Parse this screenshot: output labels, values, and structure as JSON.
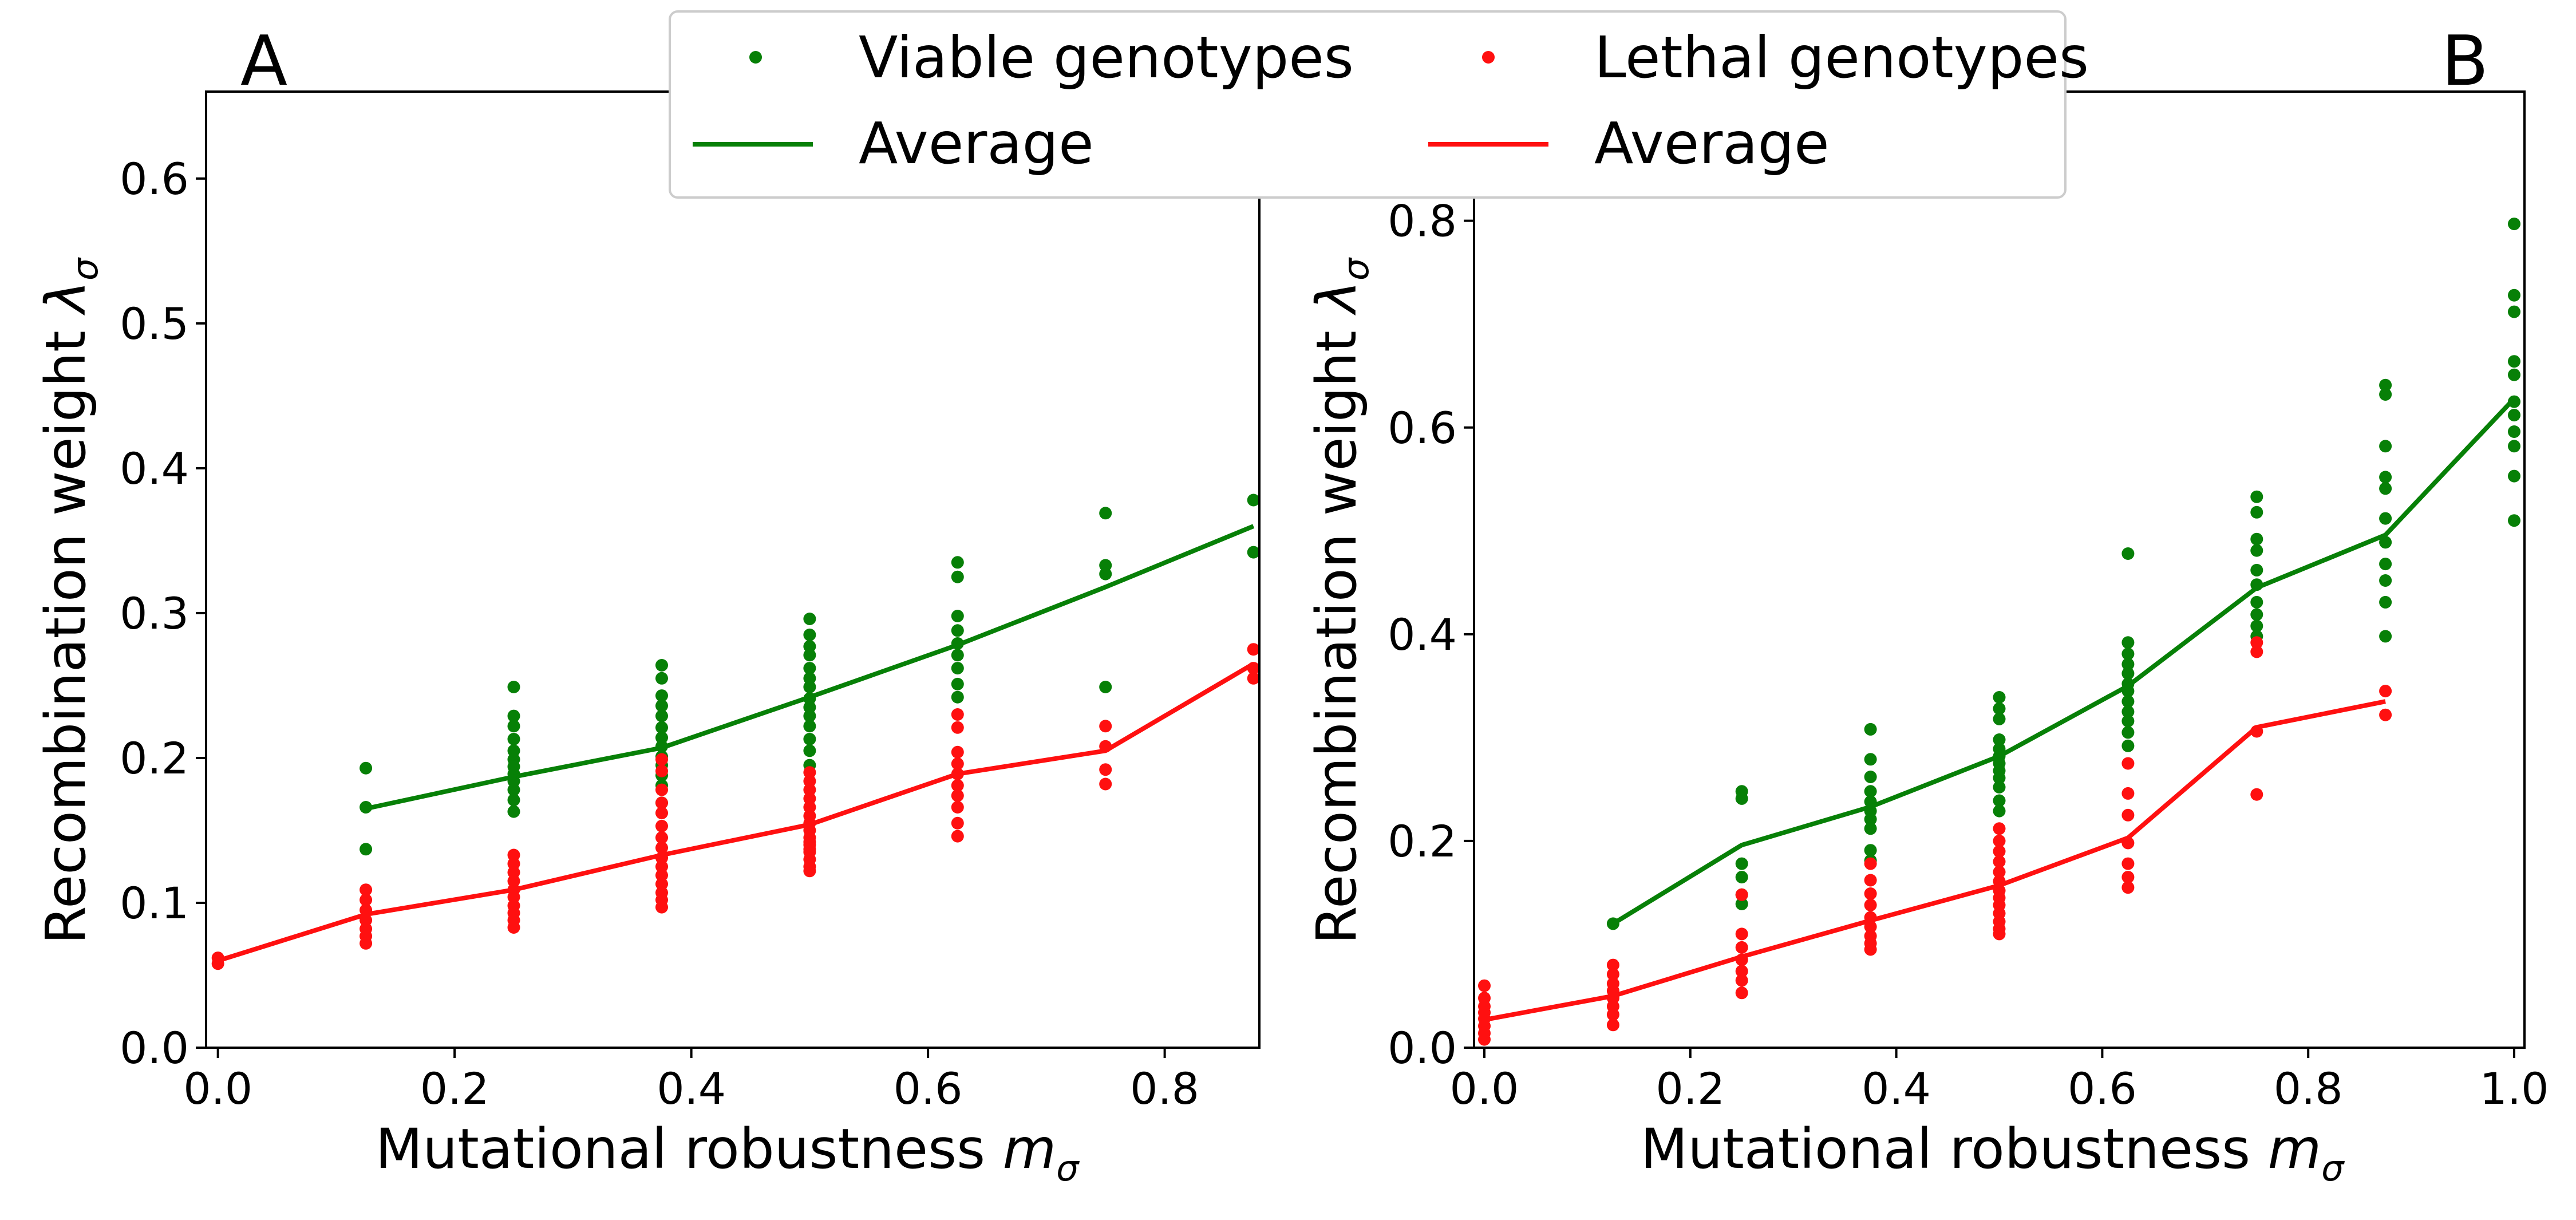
{
  "colors": {
    "viable": "#078007",
    "lethal": "#ff1010"
  },
  "legend": {
    "viable_label": "Viable genotypes",
    "viable_avg_label": "Average",
    "lethal_label": "Lethal genotypes",
    "lethal_avg_label": "Average"
  },
  "chart_data": [
    {
      "panel": "A",
      "type": "scatter",
      "xlabel": "Mutational robustness",
      "xlabel_symbol": "m",
      "xlabel_sub": "σ",
      "ylabel": "Recombination weight",
      "ylabel_symbol": "λ",
      "ylabel_sub": "σ",
      "xlim": [
        -0.01,
        0.88
      ],
      "ylim": [
        0.0,
        0.66
      ],
      "xticks": [
        0.0,
        0.2,
        0.4,
        0.6,
        0.8
      ],
      "xtick_labels": [
        "0.0",
        "0.2",
        "0.4",
        "0.6",
        "0.8"
      ],
      "yticks": [
        0.0,
        0.1,
        0.2,
        0.3,
        0.4,
        0.5,
        0.6
      ],
      "ytick_labels": [
        "0.0",
        "0.1",
        "0.2",
        "0.3",
        "0.4",
        "0.5",
        "0.6"
      ],
      "series": [
        {
          "name": "Viable genotypes",
          "kind": "points",
          "color_key": "viable",
          "x": [
            0.125,
            0.125,
            0.125,
            0.25,
            0.25,
            0.25,
            0.25,
            0.25,
            0.25,
            0.25,
            0.25,
            0.25,
            0.25,
            0.25,
            0.25,
            0.375,
            0.375,
            0.375,
            0.375,
            0.375,
            0.375,
            0.375,
            0.375,
            0.375,
            0.375,
            0.375,
            0.375,
            0.375,
            0.5,
            0.5,
            0.5,
            0.5,
            0.5,
            0.5,
            0.5,
            0.5,
            0.5,
            0.5,
            0.5,
            0.5,
            0.5,
            0.5,
            0.625,
            0.625,
            0.625,
            0.625,
            0.625,
            0.625,
            0.625,
            0.625,
            0.625,
            0.75,
            0.75,
            0.75,
            0.75,
            0.875,
            0.875
          ],
          "y": [
            0.193,
            0.166,
            0.137,
            0.249,
            0.229,
            0.222,
            0.213,
            0.205,
            0.199,
            0.194,
            0.189,
            0.184,
            0.178,
            0.171,
            0.163,
            0.264,
            0.255,
            0.243,
            0.236,
            0.229,
            0.221,
            0.214,
            0.208,
            0.201,
            0.195,
            0.188,
            0.181,
            0.169,
            0.296,
            0.285,
            0.277,
            0.271,
            0.262,
            0.255,
            0.249,
            0.241,
            0.235,
            0.229,
            0.222,
            0.213,
            0.205,
            0.195,
            0.335,
            0.325,
            0.298,
            0.288,
            0.279,
            0.271,
            0.262,
            0.251,
            0.242,
            0.369,
            0.333,
            0.327,
            0.249,
            0.378,
            0.342
          ]
        },
        {
          "name": "Average",
          "kind": "line",
          "color_key": "viable",
          "x": [
            0.125,
            0.25,
            0.375,
            0.5,
            0.625,
            0.75,
            0.875
          ],
          "y": [
            0.165,
            0.187,
            0.207,
            0.242,
            0.278,
            0.318,
            0.36
          ]
        },
        {
          "name": "Lethal genotypes",
          "kind": "points",
          "color_key": "lethal",
          "x": [
            0.0,
            0.0,
            0.125,
            0.125,
            0.125,
            0.125,
            0.125,
            0.125,
            0.125,
            0.25,
            0.25,
            0.25,
            0.25,
            0.25,
            0.25,
            0.25,
            0.25,
            0.25,
            0.25,
            0.375,
            0.375,
            0.375,
            0.375,
            0.375,
            0.375,
            0.375,
            0.375,
            0.375,
            0.375,
            0.375,
            0.375,
            0.375,
            0.375,
            0.375,
            0.5,
            0.5,
            0.5,
            0.5,
            0.5,
            0.5,
            0.5,
            0.5,
            0.5,
            0.5,
            0.5,
            0.5,
            0.5,
            0.5,
            0.5,
            0.5,
            0.625,
            0.625,
            0.625,
            0.625,
            0.625,
            0.625,
            0.625,
            0.625,
            0.625,
            0.625,
            0.75,
            0.75,
            0.75,
            0.75,
            0.875,
            0.875,
            0.875
          ],
          "y": [
            0.062,
            0.058,
            0.109,
            0.102,
            0.095,
            0.088,
            0.082,
            0.077,
            0.072,
            0.133,
            0.127,
            0.121,
            0.115,
            0.109,
            0.104,
            0.098,
            0.093,
            0.088,
            0.083,
            0.199,
            0.191,
            0.178,
            0.169,
            0.162,
            0.153,
            0.145,
            0.138,
            0.131,
            0.125,
            0.119,
            0.113,
            0.107,
            0.102,
            0.097,
            0.19,
            0.184,
            0.178,
            0.172,
            0.166,
            0.16,
            0.155,
            0.15,
            0.145,
            0.14,
            0.135,
            0.13,
            0.125,
            0.122,
            0.137,
            0.142,
            0.23,
            0.221,
            0.204,
            0.196,
            0.189,
            0.181,
            0.174,
            0.166,
            0.155,
            0.146,
            0.222,
            0.208,
            0.192,
            0.182,
            0.275,
            0.262,
            0.255
          ]
        },
        {
          "name": "Average",
          "kind": "line",
          "color_key": "lethal",
          "x": [
            0.0,
            0.125,
            0.25,
            0.375,
            0.5,
            0.625,
            0.75,
            0.875
          ],
          "y": [
            0.06,
            0.092,
            0.109,
            0.133,
            0.154,
            0.189,
            0.205,
            0.265
          ]
        }
      ]
    },
    {
      "panel": "B",
      "type": "scatter",
      "xlabel": "Mutational robustness",
      "xlabel_symbol": "m",
      "xlabel_sub": "σ",
      "ylabel": "Recombination weight",
      "ylabel_symbol": "λ",
      "ylabel_sub": "σ",
      "xlim": [
        -0.01,
        1.01
      ],
      "ylim": [
        0.0,
        0.925
      ],
      "xticks": [
        0.0,
        0.2,
        0.4,
        0.6,
        0.8,
        1.0
      ],
      "xtick_labels": [
        "0.0",
        "0.2",
        "0.4",
        "0.6",
        "0.8",
        "1.0"
      ],
      "yticks": [
        0.0,
        0.2,
        0.4,
        0.6,
        0.8
      ],
      "ytick_labels": [
        "0.0",
        "0.2",
        "0.4",
        "0.6",
        "0.8"
      ],
      "series": [
        {
          "name": "Viable genotypes",
          "kind": "points",
          "color_key": "viable",
          "x": [
            0.125,
            0.25,
            0.25,
            0.25,
            0.25,
            0.25,
            0.25,
            0.375,
            0.375,
            0.375,
            0.375,
            0.375,
            0.375,
            0.375,
            0.375,
            0.375,
            0.375,
            0.5,
            0.5,
            0.5,
            0.5,
            0.5,
            0.5,
            0.5,
            0.5,
            0.5,
            0.5,
            0.5,
            0.5,
            0.625,
            0.625,
            0.625,
            0.625,
            0.625,
            0.625,
            0.625,
            0.625,
            0.625,
            0.625,
            0.625,
            0.625,
            0.75,
            0.75,
            0.75,
            0.75,
            0.75,
            0.75,
            0.75,
            0.75,
            0.75,
            0.75,
            0.875,
            0.875,
            0.875,
            0.875,
            0.875,
            0.875,
            0.875,
            0.875,
            0.875,
            0.875,
            0.875,
            1.0,
            1.0,
            1.0,
            1.0,
            1.0,
            1.0,
            1.0,
            1.0,
            1.0,
            1.0,
            1.0
          ],
          "y": [
            0.12,
            0.248,
            0.241,
            0.178,
            0.165,
            0.148,
            0.139,
            0.308,
            0.279,
            0.262,
            0.248,
            0.238,
            0.229,
            0.221,
            0.212,
            0.191,
            0.181,
            0.339,
            0.328,
            0.318,
            0.298,
            0.289,
            0.282,
            0.275,
            0.268,
            0.261,
            0.252,
            0.239,
            0.229,
            0.478,
            0.392,
            0.381,
            0.371,
            0.362,
            0.352,
            0.345,
            0.335,
            0.325,
            0.316,
            0.305,
            0.292,
            0.533,
            0.518,
            0.492,
            0.481,
            0.462,
            0.448,
            0.431,
            0.419,
            0.408,
            0.398,
            0.641,
            0.632,
            0.582,
            0.552,
            0.541,
            0.512,
            0.489,
            0.468,
            0.452,
            0.431,
            0.398,
            0.797,
            0.728,
            0.712,
            0.664,
            0.651,
            0.625,
            0.612,
            0.596,
            0.582,
            0.553,
            0.51
          ]
        },
        {
          "name": "Average",
          "kind": "line",
          "color_key": "viable",
          "x": [
            0.125,
            0.25,
            0.375,
            0.5,
            0.625,
            0.75,
            0.875,
            1.0
          ],
          "y": [
            0.12,
            0.196,
            0.233,
            0.282,
            0.35,
            0.445,
            0.496,
            0.628
          ]
        },
        {
          "name": "Lethal genotypes",
          "kind": "points",
          "color_key": "lethal",
          "x": [
            0.0,
            0.0,
            0.0,
            0.0,
            0.0,
            0.0,
            0.0,
            0.0,
            0.125,
            0.125,
            0.125,
            0.125,
            0.125,
            0.125,
            0.125,
            0.125,
            0.25,
            0.25,
            0.25,
            0.25,
            0.25,
            0.25,
            0.25,
            0.375,
            0.375,
            0.375,
            0.375,
            0.375,
            0.375,
            0.375,
            0.375,
            0.375,
            0.5,
            0.5,
            0.5,
            0.5,
            0.5,
            0.5,
            0.5,
            0.5,
            0.5,
            0.5,
            0.5,
            0.5,
            0.5,
            0.625,
            0.625,
            0.625,
            0.625,
            0.625,
            0.625,
            0.625,
            0.75,
            0.75,
            0.75,
            0.75,
            0.875,
            0.875
          ],
          "y": [
            0.06,
            0.048,
            0.04,
            0.034,
            0.028,
            0.021,
            0.014,
            0.008,
            0.08,
            0.071,
            0.062,
            0.055,
            0.048,
            0.04,
            0.032,
            0.022,
            0.148,
            0.11,
            0.097,
            0.085,
            0.074,
            0.065,
            0.053,
            0.178,
            0.162,
            0.149,
            0.138,
            0.126,
            0.117,
            0.108,
            0.101,
            0.095,
            0.212,
            0.2,
            0.19,
            0.18,
            0.17,
            0.161,
            0.152,
            0.145,
            0.138,
            0.13,
            0.122,
            0.115,
            0.11,
            0.275,
            0.246,
            0.225,
            0.198,
            0.178,
            0.165,
            0.155,
            0.392,
            0.383,
            0.306,
            0.245,
            0.345,
            0.322
          ]
        },
        {
          "name": "Average",
          "kind": "line",
          "color_key": "lethal",
          "x": [
            0.0,
            0.125,
            0.25,
            0.375,
            0.5,
            0.625,
            0.75,
            0.875
          ],
          "y": [
            0.027,
            0.05,
            0.088,
            0.123,
            0.157,
            0.203,
            0.31,
            0.335
          ]
        }
      ]
    }
  ]
}
